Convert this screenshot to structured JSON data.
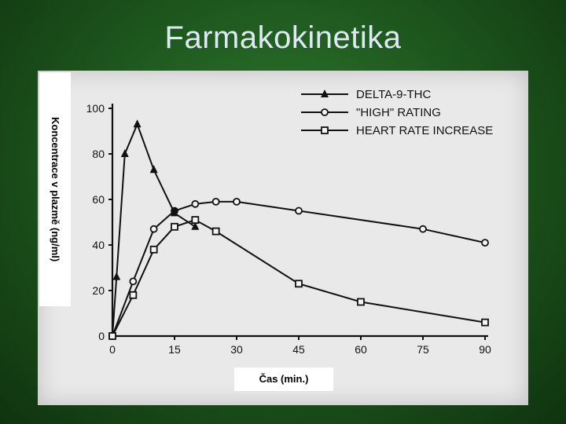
{
  "slide": {
    "title": "Farmakokinetika"
  },
  "colors": {
    "background": "#1f5a1f",
    "title": "#dfe9f4",
    "plot_bg": "#e9e9e9",
    "ink": "#111111"
  },
  "chart_data": {
    "type": "line",
    "title": "",
    "xlabel": "Čas (min.)",
    "ylabel": "Koncentrace v plazmě (ng/ml)",
    "xlim": [
      0,
      90
    ],
    "ylim": [
      0,
      100
    ],
    "xticks": [
      0,
      15,
      30,
      45,
      60,
      75,
      90
    ],
    "yticks": [
      0,
      20,
      40,
      60,
      80,
      100
    ],
    "legend_position": "top-right",
    "series": [
      {
        "name": "DELTA-9-THC",
        "marker": "triangle",
        "x": [
          0,
          1,
          3,
          6,
          10,
          15,
          20
        ],
        "y": [
          0,
          26,
          80,
          93,
          73,
          54,
          48
        ]
      },
      {
        "name": "\"HIGH\" RATING",
        "marker": "circle",
        "x": [
          0,
          5,
          10,
          15,
          20,
          25,
          30,
          45,
          75,
          90
        ],
        "y": [
          0,
          24,
          47,
          55,
          58,
          59,
          59,
          55,
          47,
          41
        ]
      },
      {
        "name": "HEART RATE INCREASE",
        "marker": "square",
        "x": [
          0,
          5,
          10,
          15,
          20,
          25,
          45,
          60,
          90
        ],
        "y": [
          0,
          18,
          38,
          48,
          51,
          46,
          23,
          15,
          6
        ]
      }
    ]
  }
}
